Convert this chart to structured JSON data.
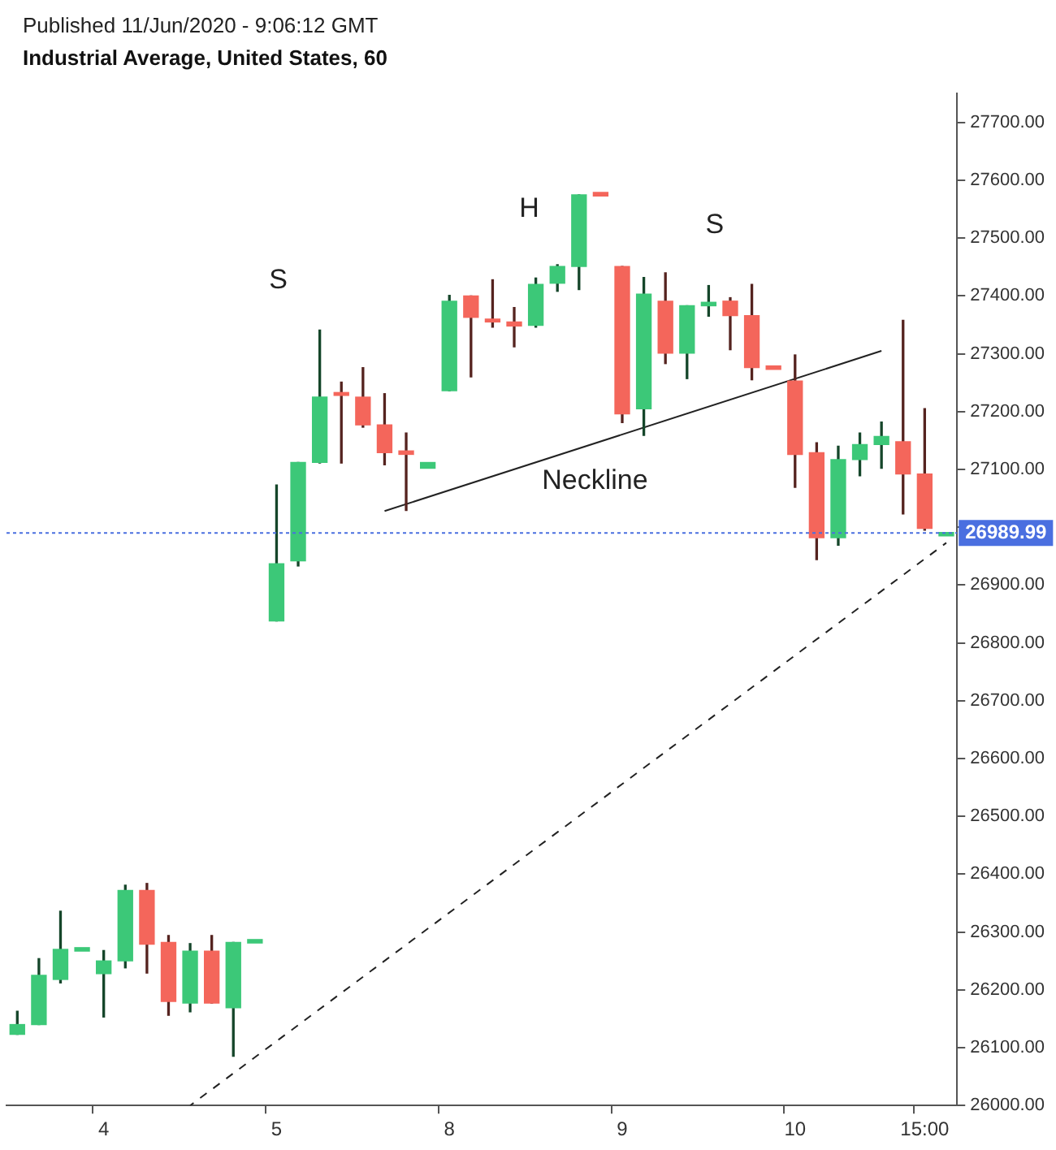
{
  "chart_data": {
    "type": "candlestick",
    "title": "Industrial Average, United States, 60",
    "subtitle": "Published 11/Jun/2020 - 9:06:12 GMT",
    "categories": [
      null,
      null,
      null,
      null,
      "4",
      null,
      null,
      null,
      null,
      null,
      null,
      null,
      "5",
      null,
      null,
      null,
      null,
      null,
      null,
      null,
      "8",
      null,
      null,
      null,
      null,
      null,
      null,
      null,
      "9",
      null,
      null,
      null,
      null,
      null,
      null,
      null,
      "10",
      null,
      null,
      null,
      null,
      null,
      "15:00",
      null
    ],
    "ohlc": [
      [
        26123,
        26163,
        26123,
        26140
      ],
      [
        26140,
        26254,
        26140,
        26225
      ],
      [
        26218,
        26336,
        26212,
        26270
      ],
      [
        26267,
        26273,
        26267,
        26273
      ],
      [
        26228,
        26268,
        26153,
        26250
      ],
      [
        26250,
        26381,
        26238,
        26372
      ],
      [
        26372,
        26384,
        26229,
        26279
      ],
      [
        26282,
        26294,
        26156,
        26180
      ],
      [
        26177,
        26280,
        26162,
        26267
      ],
      [
        26267,
        26294,
        26177,
        26177
      ],
      [
        26169,
        26282,
        26085,
        26282
      ],
      [
        26281,
        26287,
        26281,
        26287
      ],
      [
        26838,
        27073,
        26838,
        26937
      ],
      [
        26942,
        27112,
        26933,
        27112
      ],
      [
        27112,
        27341,
        27111,
        27225
      ],
      [
        27233,
        27251,
        27111,
        27228
      ],
      [
        27225,
        27276,
        27173,
        27177
      ],
      [
        27177,
        27231,
        27108,
        27129
      ],
      [
        27132,
        27163,
        27029,
        27126
      ],
      [
        27102,
        27112,
        27102,
        27112
      ],
      [
        27236,
        27401,
        27236,
        27391
      ],
      [
        27400,
        27400,
        27260,
        27363
      ],
      [
        27360,
        27428,
        27346,
        27355
      ],
      [
        27355,
        27380,
        27312,
        27348
      ],
      [
        27349,
        27431,
        27346,
        27420
      ],
      [
        27422,
        27454,
        27408,
        27451
      ],
      [
        27451,
        27575,
        27411,
        27575
      ],
      [
        27579,
        27579,
        27573,
        27573
      ],
      [
        27451,
        27451,
        27181,
        27196
      ],
      [
        27205,
        27432,
        27159,
        27403
      ],
      [
        27391,
        27440,
        27283,
        27301
      ],
      [
        27301,
        27383,
        27257,
        27383
      ],
      [
        27383,
        27418,
        27365,
        27389
      ],
      [
        27391,
        27397,
        27307,
        27366
      ],
      [
        27366,
        27420,
        27255,
        27276
      ],
      [
        27279,
        27279,
        27273,
        27273
      ],
      [
        27253,
        27298,
        27069,
        27126
      ],
      [
        27129,
        27146,
        26944,
        26982
      ],
      [
        26982,
        27140,
        26969,
        27117
      ],
      [
        27117,
        27163,
        27089,
        27143
      ],
      [
        27143,
        27182,
        27102,
        27157
      ],
      [
        27148,
        27358,
        27023,
        27092
      ],
      [
        27092,
        27205,
        26995,
        26998
      ],
      [
        26985,
        26991,
        26985,
        26991
      ]
    ],
    "colors": [
      "#3cc878",
      "#3cc878",
      "#3cc878",
      "#3cc878",
      "#3cc878",
      "#3cc878",
      "#f4665b",
      "#f4665b",
      "#3cc878",
      "#f4665b",
      "#3cc878",
      "#3cc878",
      "#3cc878",
      "#3cc878",
      "#3cc878",
      "#f4665b",
      "#f4665b",
      "#f4665b",
      "#f4665b",
      "#3cc878",
      "#3cc878",
      "#f4665b",
      "#f4665b",
      "#f4665b",
      "#3cc878",
      "#3cc878",
      "#3cc878",
      "#f4665b",
      "#f4665b",
      "#3cc878",
      "#f4665b",
      "#3cc878",
      "#3cc878",
      "#f4665b",
      "#f4665b",
      "#f4665b",
      "#f4665b",
      "#f4665b",
      "#3cc878",
      "#3cc878",
      "#3cc878",
      "#f4665b",
      "#f4665b",
      "#3cc878"
    ],
    "series": [
      {
        "type": "line",
        "values": [
          null,
          null,
          null,
          null,
          null,
          null,
          null,
          null,
          null,
          null,
          null,
          null,
          null,
          null,
          null,
          null,
          null,
          27028,
          null,
          null,
          null,
          null,
          null,
          null,
          null,
          null,
          null,
          null,
          null,
          null,
          null,
          null,
          null,
          null,
          null,
          null,
          null,
          null,
          null,
          null,
          27305,
          null,
          null,
          null
        ],
        "color": "#222222",
        "line_style": "solid"
      },
      {
        "type": "line",
        "values": [
          null,
          null,
          null,
          null,
          null,
          null,
          null,
          null,
          26000,
          null,
          null,
          null,
          null,
          null,
          null,
          null,
          null,
          null,
          null,
          null,
          null,
          null,
          null,
          null,
          null,
          null,
          null,
          null,
          null,
          null,
          null,
          null,
          null,
          null,
          null,
          null,
          null,
          null,
          null,
          null,
          null,
          null,
          null,
          26973
        ],
        "color": "#222222",
        "line_style": "dashed"
      }
    ],
    "ylim": [
      26000,
      27750
    ],
    "yticks": [
      {
        "value": 26000,
        "label": "26000.00"
      },
      {
        "value": 26100,
        "label": "26100.00"
      },
      {
        "value": 26200,
        "label": "26200.00"
      },
      {
        "value": 26300,
        "label": "26300.00"
      },
      {
        "value": 26400,
        "label": "26400.00"
      },
      {
        "value": 26500,
        "label": "26500.00"
      },
      {
        "value": 26600,
        "label": "26600.00"
      },
      {
        "value": 26700,
        "label": "26700.00"
      },
      {
        "value": 26800,
        "label": "26800.00"
      },
      {
        "value": 26900,
        "label": "26900.00"
      },
      {
        "value": 27000,
        "label": null
      },
      {
        "value": 27100,
        "label": "27100.00"
      },
      {
        "value": 27200,
        "label": "27200.00"
      },
      {
        "value": 27300,
        "label": "27300.00"
      },
      {
        "value": 27400,
        "label": "27400.00"
      },
      {
        "value": 27500,
        "label": "27500.00"
      },
      {
        "value": 27600,
        "label": "27600.00"
      },
      {
        "value": 27700,
        "label": "27700.00"
      }
    ],
    "ref_lines": [
      {
        "axis": "y",
        "value": 26989.99,
        "label": "26989.99",
        "color": "#4a6fe0",
        "line_style": "dotted"
      }
    ],
    "annotations": [
      "S",
      "H",
      "S",
      "Neckline"
    ],
    "grid": false,
    "legend": false
  }
}
